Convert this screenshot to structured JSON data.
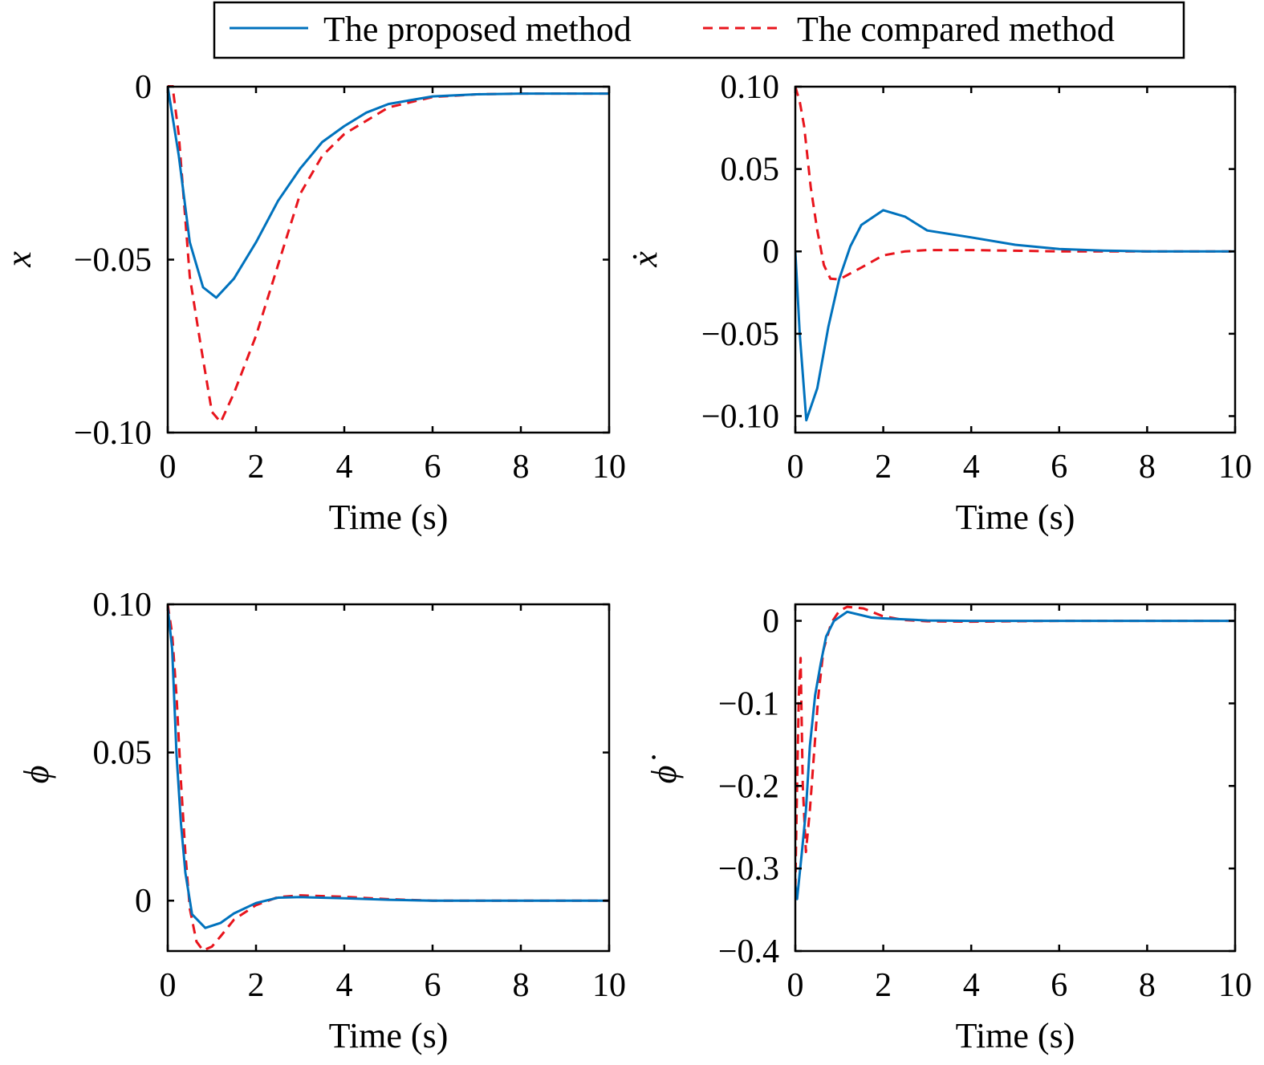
{
  "legend": {
    "placement": "top-center",
    "items": [
      {
        "label": "The proposed method",
        "color": "#0072BD",
        "style": "solid"
      },
      {
        "label": "The compared method",
        "color": "#E8141C",
        "style": "dashed"
      }
    ]
  },
  "chart_data": [
    {
      "type": "line",
      "xlabel": "Time (s)",
      "ylabel": "x",
      "xlim": [
        0,
        10
      ],
      "ylim": [
        -0.1,
        0
      ],
      "xticks": [
        0,
        2,
        4,
        6,
        8,
        10
      ],
      "xticklabels": [
        "0",
        "2",
        "4",
        "6",
        "8",
        "10"
      ],
      "yticks": [
        0,
        -0.05,
        -0.1
      ],
      "yticklabels": [
        "0",
        "−0.05",
        "−0.10"
      ],
      "grid": false,
      "series": [
        {
          "name": "The proposed method",
          "x": [
            0,
            0.25,
            0.5,
            0.8,
            1.1,
            1.5,
            2,
            2.5,
            3,
            3.5,
            4,
            4.5,
            5,
            6,
            7,
            8,
            10
          ],
          "y": [
            0,
            -0.02,
            -0.045,
            -0.058,
            -0.061,
            -0.0555,
            -0.045,
            -0.033,
            -0.0237,
            -0.016,
            -0.0114,
            -0.0075,
            -0.005,
            -0.0028,
            -0.0022,
            -0.002,
            -0.002
          ]
        },
        {
          "name": "The compared method",
          "x": [
            0,
            0.1,
            0.25,
            0.5,
            0.75,
            1.0,
            1.2,
            1.5,
            2,
            2.5,
            3,
            3.5,
            4,
            5,
            6,
            7,
            8,
            10
          ],
          "y": [
            0,
            0.001,
            -0.014,
            -0.055,
            -0.075,
            -0.094,
            -0.097,
            -0.0886,
            -0.072,
            -0.0515,
            -0.031,
            -0.02,
            -0.0137,
            -0.006,
            -0.003,
            -0.0022,
            -0.002,
            -0.002
          ]
        }
      ]
    },
    {
      "type": "line",
      "xlabel": "Time (s)",
      "ylabel": "ẋ",
      "xlim": [
        0,
        10
      ],
      "ylim": [
        -0.11,
        0.1
      ],
      "xticks": [
        0,
        2,
        4,
        6,
        8,
        10
      ],
      "xticklabels": [
        "0",
        "2",
        "4",
        "6",
        "8",
        "10"
      ],
      "yticks": [
        0.1,
        0.05,
        0,
        -0.05,
        -0.1
      ],
      "yticklabels": [
        "0.10",
        "0.05",
        "0",
        "−0.05",
        "−0.10"
      ],
      "grid": false,
      "series": [
        {
          "name": "The proposed method",
          "x": [
            0,
            0.1,
            0.25,
            0.5,
            0.75,
            1,
            1.25,
            1.5,
            2,
            2.5,
            3,
            4,
            5,
            6,
            7,
            8,
            10
          ],
          "y": [
            0,
            -0.05,
            -0.1025,
            -0.083,
            -0.046,
            -0.0166,
            0.003,
            0.016,
            0.025,
            0.021,
            0.0127,
            0.0085,
            0.004,
            0.0015,
            0.0005,
            0,
            0
          ]
        },
        {
          "name": "The compared method",
          "x": [
            0,
            0.1,
            0.2,
            0.35,
            0.5,
            0.65,
            0.8,
            1,
            1.5,
            2,
            2.5,
            3,
            4,
            5,
            6,
            8,
            10
          ],
          "y": [
            0.1,
            0.091,
            0.076,
            0.039,
            0.0127,
            -0.0083,
            -0.0166,
            -0.017,
            -0.0098,
            -0.0024,
            0,
            0.0008,
            0.0008,
            0.0004,
            0,
            0,
            0
          ]
        }
      ]
    },
    {
      "type": "line",
      "xlabel": "Time (s)",
      "ylabel": "ϕ",
      "xlim": [
        0,
        10
      ],
      "ylim": [
        -0.017,
        0.1
      ],
      "xticks": [
        0,
        2,
        4,
        6,
        8,
        10
      ],
      "xticklabels": [
        "0",
        "2",
        "4",
        "6",
        "8",
        "10"
      ],
      "yticks": [
        0.1,
        0.05,
        0
      ],
      "yticklabels": [
        "0.10",
        "0.05",
        "0"
      ],
      "grid": false,
      "series": [
        {
          "name": "The proposed method",
          "x": [
            0,
            0.1,
            0.2,
            0.3,
            0.4,
            0.55,
            0.85,
            1.2,
            1.5,
            2,
            2.5,
            3,
            4,
            5,
            6,
            8,
            10
          ],
          "y": [
            0.099,
            0.085,
            0.049,
            0.026,
            0.0094,
            -0.0046,
            -0.0092,
            -0.0075,
            -0.0043,
            -0.0008,
            0.001,
            0.0012,
            0.0008,
            0.0003,
            0,
            0,
            0
          ]
        },
        {
          "name": "The compared method",
          "x": [
            0,
            0.1,
            0.2,
            0.3,
            0.4,
            0.5,
            0.65,
            0.8,
            1.0,
            1.2,
            1.5,
            2,
            2.5,
            3,
            4,
            5,
            6,
            8,
            10
          ],
          "y": [
            0.1,
            0.09,
            0.069,
            0.04,
            0.016,
            -0.0027,
            -0.0138,
            -0.0168,
            -0.0155,
            -0.012,
            -0.0064,
            -0.0015,
            0.0012,
            0.0018,
            0.0013,
            0.0005,
            0,
            0,
            0
          ]
        }
      ]
    },
    {
      "type": "line",
      "xlabel": "Time (s)",
      "ylabel": "ϕ̇",
      "xlim": [
        0,
        10
      ],
      "ylim": [
        -0.4,
        0.02
      ],
      "xticks": [
        0,
        2,
        4,
        6,
        8,
        10
      ],
      "xticklabels": [
        "0",
        "2",
        "4",
        "6",
        "8",
        "10"
      ],
      "yticks": [
        0,
        -0.1,
        -0.2,
        -0.3,
        -0.4
      ],
      "yticklabels": [
        "0",
        "−0.1",
        "−0.2",
        "−0.3",
        "−0.4"
      ],
      "grid": false,
      "series": [
        {
          "name": "The proposed method",
          "x": [
            0,
            0.04,
            0.15,
            0.24,
            0.33,
            0.45,
            0.58,
            0.7,
            0.88,
            1.18,
            1.73,
            2,
            3,
            4,
            6,
            8,
            10
          ],
          "y": [
            -0.32,
            -0.337,
            -0.28,
            -0.23,
            -0.152,
            -0.09,
            -0.051,
            -0.019,
            0,
            0.011,
            0.004,
            0.003,
            0.0005,
            0,
            0,
            0,
            0
          ]
        },
        {
          "name": "The compared method",
          "x": [
            0,
            0.04,
            0.08,
            0.12,
            0.17,
            0.24,
            0.33,
            0.42,
            0.52,
            0.64,
            0.82,
            1.0,
            1.18,
            1.55,
            1.97,
            2.45,
            3,
            4,
            6,
            8,
            10
          ],
          "y": [
            -0.324,
            -0.2,
            -0.09,
            -0.045,
            -0.2,
            -0.28,
            -0.23,
            -0.165,
            -0.093,
            -0.035,
            -0.0023,
            0.012,
            0.017,
            0.015,
            0.006,
            0.001,
            -0.0005,
            -0.001,
            0,
            0,
            0
          ]
        }
      ]
    }
  ]
}
